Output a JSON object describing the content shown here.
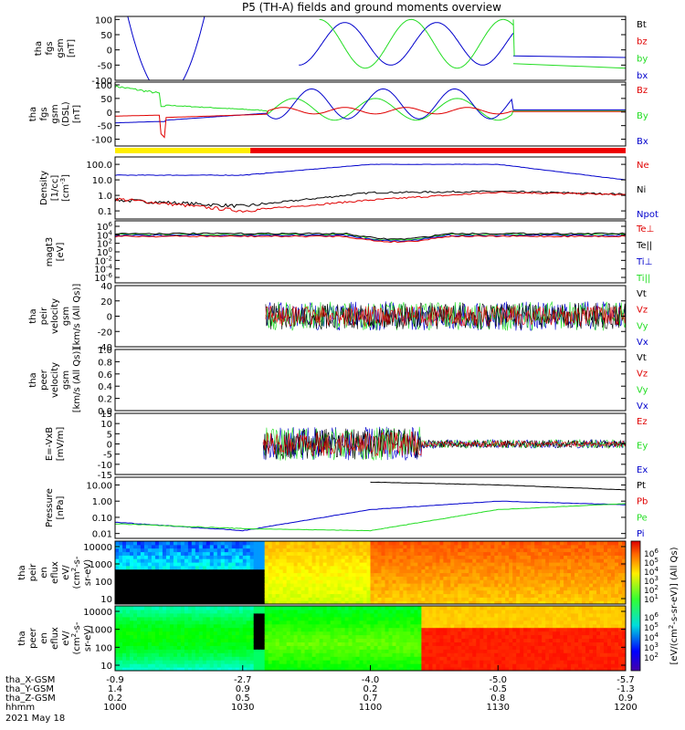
{
  "title": "P5 (TH-A) fields and ground moments overview",
  "colors": {
    "black": "#000000",
    "red": "#e00000",
    "green": "#22dd22",
    "blue": "#0000cc",
    "yellow": "#ffee00",
    "bar_red": "#ee0000"
  },
  "panels": [
    {
      "id": "fgs_gsm",
      "ylabel": [
        "tha",
        "fgs",
        "gsm",
        "[nT]"
      ],
      "ticks": [
        "100",
        "50",
        "0",
        "-50",
        "-100"
      ],
      "tick_values": [
        100,
        50,
        0,
        -50,
        -100
      ],
      "ylim": [
        -100,
        110
      ],
      "legend": [
        {
          "label": "Bt",
          "color": "#000000"
        },
        {
          "label": "bz",
          "color": "#e00000"
        },
        {
          "label": "by",
          "color": "#22dd22"
        },
        {
          "label": "bx",
          "color": "#0000cc"
        }
      ]
    },
    {
      "id": "fgs_gsm_dsl",
      "ylabel": [
        "tha",
        "fgs",
        "gsm",
        "(DSL)",
        "[nT]"
      ],
      "ticks": [
        "100",
        "50",
        "0",
        "-50",
        "-100"
      ],
      "tick_values": [
        100,
        50,
        0,
        -50,
        -100
      ],
      "ylim": [
        -125,
        110
      ],
      "legend": [
        {
          "label": "Bz",
          "color": "#e00000"
        },
        {
          "label": "By",
          "color": "#22dd22"
        },
        {
          "label": "Bx",
          "color": "#0000cc"
        }
      ]
    },
    {
      "id": "density",
      "ylabel": [
        "Density",
        "[1/cc]",
        "[cm^-3]"
      ],
      "ticks": [
        "100.0",
        "10.0",
        "1.0",
        "0.1"
      ],
      "log": true,
      "ylim": [
        0.03,
        300
      ],
      "legend": [
        {
          "label": "Ne",
          "color": "#e00000"
        },
        {
          "label": "Ni",
          "color": "#000000"
        },
        {
          "label": "Npot",
          "color": "#0000cc"
        }
      ]
    },
    {
      "id": "temperature",
      "ylabel": [
        "magt3",
        "[eV]"
      ],
      "ticks": [
        "10^6",
        "10^4",
        "10^2",
        "10^0",
        "10^-2",
        "10^-4",
        "10^-6"
      ],
      "legend": [
        {
          "label": "Te⊥",
          "color": "#e00000"
        },
        {
          "label": "Te||",
          "color": "#000000"
        },
        {
          "label": "Ti⊥",
          "color": "#0000cc"
        },
        {
          "label": "Ti||",
          "color": "#22dd22"
        }
      ]
    },
    {
      "id": "peir_velocity",
      "ylabel": [
        "tha",
        "peir",
        "velocity",
        "gsm",
        "[km/s (All Qs)]"
      ],
      "ticks": [
        "40",
        "20",
        "0",
        "-20",
        "-40"
      ],
      "tick_values": [
        40,
        20,
        0,
        -20,
        -40
      ],
      "ylim": [
        -40,
        40
      ],
      "legend": [
        {
          "label": "Vt",
          "color": "#000000"
        },
        {
          "label": "Vz",
          "color": "#e00000"
        },
        {
          "label": "Vy",
          "color": "#22dd22"
        },
        {
          "label": "Vx",
          "color": "#0000cc"
        }
      ]
    },
    {
      "id": "peer_velocity",
      "ylabel": [
        "tha",
        "peer",
        "velocity",
        "gsm",
        "[km/s (All Qs)]"
      ],
      "ticks": [
        "1.0",
        "0.8",
        "0.6",
        "0.4",
        "0.2",
        "0.0"
      ],
      "tick_values": [
        1.0,
        0.8,
        0.6,
        0.4,
        0.2,
        0.0
      ],
      "ylim": [
        0,
        1
      ],
      "legend": [
        {
          "label": "Vt",
          "color": "#000000"
        },
        {
          "label": "Vz",
          "color": "#e00000"
        },
        {
          "label": "Vy",
          "color": "#22dd22"
        },
        {
          "label": "Vx",
          "color": "#0000cc"
        }
      ]
    },
    {
      "id": "efield",
      "ylabel": [
        "E=-VxB",
        "[mV/m]"
      ],
      "ticks": [
        "15",
        "10",
        "5",
        "0",
        "-5",
        "-10",
        "-15"
      ],
      "tick_values": [
        15,
        10,
        5,
        0,
        -5,
        -10,
        -15
      ],
      "ylim": [
        -15,
        15
      ],
      "legend": [
        {
          "label": "Ez",
          "color": "#e00000"
        },
        {
          "label": "Ey",
          "color": "#22dd22"
        },
        {
          "label": "Ex",
          "color": "#0000cc"
        }
      ]
    },
    {
      "id": "pressure",
      "ylabel": [
        "Pressure",
        "[nPa]"
      ],
      "ticks": [
        "10.00",
        "1.00",
        "0.10",
        "0.01"
      ],
      "log": true,
      "ylim": [
        0.005,
        30
      ],
      "legend": [
        {
          "label": "Pt",
          "color": "#000000"
        },
        {
          "label": "Pb",
          "color": "#e00000"
        },
        {
          "label": "Pe",
          "color": "#22dd22"
        },
        {
          "label": "Pi",
          "color": "#0000cc"
        }
      ]
    },
    {
      "id": "peir_eflux",
      "ylabel": [
        "tha",
        "peir",
        "en",
        "eflux",
        "eV/",
        "(cm^2-s-",
        "sr-eV)"
      ],
      "ticks": [
        "10000",
        "1000",
        "100",
        "10"
      ]
    },
    {
      "id": "peer_eflux",
      "ylabel": [
        "tha",
        "peer",
        "en",
        "eflux",
        "eV/",
        "(cm^2-s-",
        "sr-eV)"
      ],
      "ticks": [
        "10000",
        "1000",
        "100",
        "10"
      ]
    }
  ],
  "colorbar": {
    "label": "[eV/(cm^2-s-sr-eV)] (All Qs)",
    "ticks_top": [
      "10^6",
      "10^5",
      "10^4",
      "10^3",
      "10^2",
      "10^1"
    ],
    "ticks_bottom": [
      "10^6",
      "10^5",
      "10^4",
      "10^3",
      "10^2"
    ]
  },
  "x_axis": {
    "rows": [
      {
        "label": "tha_X-GSM",
        "values": [
          "-0.9",
          "-2.7",
          "-4.0",
          "-5.0",
          "-5.7"
        ]
      },
      {
        "label": "tha_Y-GSM",
        "values": [
          "1.4",
          "0.9",
          "0.2",
          "-0.5",
          "-1.3"
        ]
      },
      {
        "label": "tha_Z-GSM",
        "values": [
          "0.2",
          "0.5",
          "0.7",
          "0.8",
          "0.9"
        ]
      },
      {
        "label": "hhmm",
        "values": [
          "1000",
          "1030",
          "1100",
          "1130",
          "1200"
        ]
      }
    ],
    "date": "2021 May 18"
  },
  "chart_data": {
    "type": "line",
    "title": "P5 (TH-A) fields and ground moments overview",
    "x": [
      "1000",
      "1030",
      "1100",
      "1130",
      "1200"
    ],
    "xlabel": "hhmm",
    "series": [
      {
        "name": "Ni",
        "panel": "density",
        "values": [
          0.5,
          0.2,
          1.5,
          1.8,
          1.2
        ]
      },
      {
        "name": "Ne",
        "panel": "density",
        "values": [
          0.6,
          0.1,
          0.5,
          1.6,
          1.1
        ]
      },
      {
        "name": "Npot",
        "panel": "density",
        "values": [
          20,
          20,
          100,
          100,
          10
        ]
      },
      {
        "name": "Pi",
        "panel": "pressure",
        "values": [
          0.05,
          0.015,
          0.3,
          1.0,
          0.6
        ]
      },
      {
        "name": "Pe",
        "panel": "pressure",
        "values": [
          0.04,
          0.02,
          0.015,
          0.3,
          0.7
        ]
      },
      {
        "name": "Pt",
        "panel": "pressure",
        "values": [
          null,
          null,
          15,
          10,
          5
        ]
      }
    ]
  }
}
